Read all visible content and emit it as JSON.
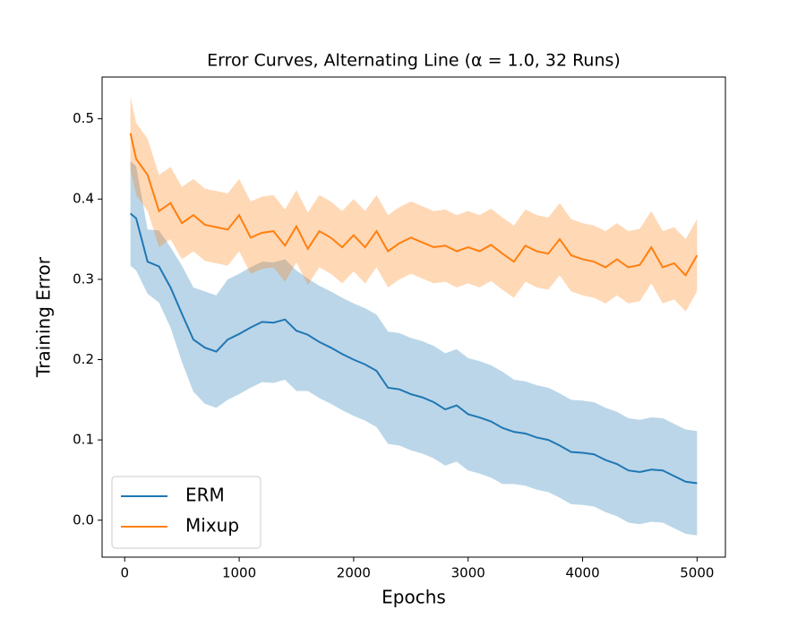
{
  "chart_data": {
    "type": "line",
    "title": "Error Curves, Alternating Line (α = 1.0, 32 Runs)",
    "x_label": "Epochs",
    "y_label": "Training Error",
    "x": [
      50,
      100,
      200,
      300,
      400,
      500,
      600,
      700,
      800,
      900,
      1000,
      1100,
      1200,
      1300,
      1400,
      1500,
      1600,
      1700,
      1800,
      1900,
      2000,
      2100,
      2200,
      2300,
      2400,
      2500,
      2600,
      2700,
      2800,
      2900,
      3000,
      3100,
      3200,
      3300,
      3400,
      3500,
      3600,
      3700,
      3800,
      3900,
      4000,
      4100,
      4200,
      4300,
      4400,
      4500,
      4600,
      4700,
      4800,
      4900,
      5000
    ],
    "series": [
      {
        "name": "ERM",
        "color": "#1f77b4",
        "values": [
          0.382,
          0.376,
          0.322,
          0.316,
          0.29,
          0.257,
          0.225,
          0.215,
          0.21,
          0.225,
          0.232,
          0.24,
          0.247,
          0.246,
          0.25,
          0.236,
          0.231,
          0.222,
          0.215,
          0.207,
          0.2,
          0.194,
          0.186,
          0.165,
          0.163,
          0.157,
          0.153,
          0.147,
          0.138,
          0.143,
          0.132,
          0.128,
          0.123,
          0.115,
          0.11,
          0.108,
          0.103,
          0.1,
          0.093,
          0.085,
          0.084,
          0.082,
          0.075,
          0.07,
          0.062,
          0.06,
          0.063,
          0.062,
          0.055,
          0.048,
          0.046
        ],
        "errors": [
          0.065,
          0.065,
          0.04,
          0.045,
          0.05,
          0.06,
          0.065,
          0.07,
          0.07,
          0.075,
          0.075,
          0.075,
          0.075,
          0.075,
          0.075,
          0.075,
          0.07,
          0.07,
          0.07,
          0.07,
          0.07,
          0.07,
          0.07,
          0.07,
          0.07,
          0.07,
          0.07,
          0.07,
          0.07,
          0.07,
          0.07,
          0.07,
          0.07,
          0.07,
          0.065,
          0.065,
          0.065,
          0.065,
          0.065,
          0.065,
          0.065,
          0.065,
          0.065,
          0.065,
          0.065,
          0.065,
          0.065,
          0.065,
          0.065,
          0.065,
          0.065
        ]
      },
      {
        "name": "Mixup",
        "color": "#ff7f0e",
        "values": [
          0.482,
          0.45,
          0.43,
          0.385,
          0.395,
          0.37,
          0.38,
          0.368,
          0.365,
          0.362,
          0.38,
          0.352,
          0.358,
          0.36,
          0.342,
          0.366,
          0.338,
          0.36,
          0.352,
          0.34,
          0.355,
          0.34,
          0.36,
          0.335,
          0.345,
          0.352,
          0.346,
          0.34,
          0.342,
          0.335,
          0.34,
          0.335,
          0.343,
          0.332,
          0.322,
          0.342,
          0.335,
          0.332,
          0.35,
          0.33,
          0.325,
          0.322,
          0.315,
          0.325,
          0.315,
          0.318,
          0.34,
          0.315,
          0.32,
          0.305,
          0.33
        ],
        "errors": [
          0.045,
          0.045,
          0.045,
          0.045,
          0.045,
          0.045,
          0.045,
          0.045,
          0.045,
          0.045,
          0.045,
          0.045,
          0.045,
          0.045,
          0.045,
          0.045,
          0.045,
          0.045,
          0.045,
          0.045,
          0.045,
          0.045,
          0.045,
          0.045,
          0.045,
          0.045,
          0.045,
          0.045,
          0.045,
          0.045,
          0.045,
          0.045,
          0.045,
          0.045,
          0.045,
          0.045,
          0.045,
          0.045,
          0.045,
          0.045,
          0.045,
          0.045,
          0.045,
          0.045,
          0.045,
          0.045,
          0.045,
          0.045,
          0.045,
          0.045,
          0.045
        ]
      }
    ],
    "xlim": [
      -197.5,
      5247.5
    ],
    "xticks": [
      0,
      1000,
      2000,
      3000,
      4000,
      5000
    ],
    "ylim": [
      -0.046,
      0.552
    ],
    "yticks": [
      {
        "value": 0,
        "label": "0.0"
      },
      0.1,
      0.2,
      0.3,
      0.4,
      0.5
    ],
    "band_opacity": 0.3,
    "legend": "lower left"
  }
}
